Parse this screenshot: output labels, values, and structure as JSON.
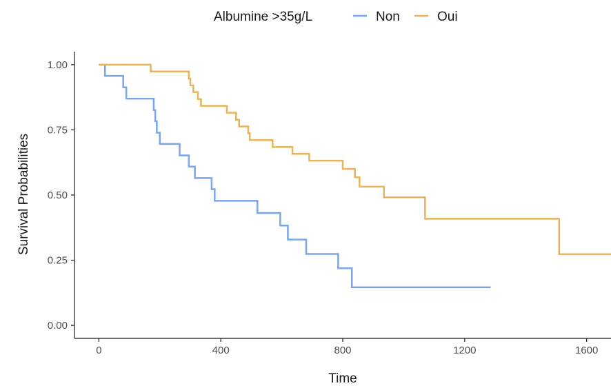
{
  "chart_data": {
    "type": "line",
    "step": true,
    "title": "",
    "xlabel": "Time",
    "ylabel": "Survival Probabilities",
    "xlim": [
      -80,
      1680
    ],
    "ylim": [
      -0.05,
      1.05
    ],
    "x_ticks": [
      0,
      400,
      800,
      1200,
      1600
    ],
    "x_tick_labels": [
      "0",
      "400",
      "800",
      "1200",
      "1600"
    ],
    "y_ticks": [
      0,
      0.25,
      0.5,
      0.75,
      1.0
    ],
    "y_tick_labels": [
      "0.00",
      "0.25",
      "0.50",
      "0.75",
      "1.00"
    ],
    "grid": false,
    "legend": {
      "position": "top",
      "title": "Albumine >35g/L",
      "entries": [
        "Non",
        "Oui"
      ]
    },
    "series": [
      {
        "name": "Non",
        "color": "#7aa6e8",
        "points": [
          [
            0,
            1.0
          ],
          [
            20,
            0.957
          ],
          [
            80,
            0.913
          ],
          [
            90,
            0.87
          ],
          [
            180,
            0.826
          ],
          [
            185,
            0.783
          ],
          [
            190,
            0.739
          ],
          [
            200,
            0.696
          ],
          [
            265,
            0.652
          ],
          [
            295,
            0.609
          ],
          [
            315,
            0.565
          ],
          [
            370,
            0.522
          ],
          [
            380,
            0.478
          ],
          [
            520,
            0.431
          ],
          [
            595,
            0.383
          ],
          [
            620,
            0.329
          ],
          [
            680,
            0.274
          ],
          [
            785,
            0.219
          ],
          [
            830,
            0.146
          ],
          [
            1285,
            0.146
          ]
        ]
      },
      {
        "name": "Oui",
        "color": "#e8b35a",
        "points": [
          [
            0,
            1.0
          ],
          [
            170,
            0.974
          ],
          [
            295,
            0.947
          ],
          [
            300,
            0.921
          ],
          [
            310,
            0.895
          ],
          [
            325,
            0.868
          ],
          [
            335,
            0.842
          ],
          [
            420,
            0.816
          ],
          [
            450,
            0.789
          ],
          [
            460,
            0.763
          ],
          [
            490,
            0.737
          ],
          [
            495,
            0.711
          ],
          [
            570,
            0.684
          ],
          [
            635,
            0.658
          ],
          [
            690,
            0.632
          ],
          [
            800,
            0.6
          ],
          [
            840,
            0.568
          ],
          [
            855,
            0.532
          ],
          [
            935,
            0.491
          ],
          [
            1070,
            0.409
          ],
          [
            1510,
            0.273
          ],
          [
            1680,
            0.273
          ]
        ]
      }
    ]
  }
}
